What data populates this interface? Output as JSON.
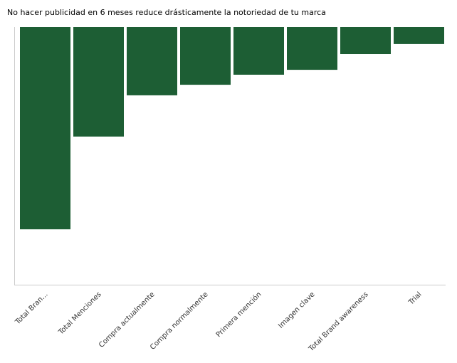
{
  "chart_data": {
    "type": "bar",
    "title": "No hacer publicidad en 6 meses reduce drásticamente la notoriedad de tu marca",
    "categories": [
      "Total Bran...",
      "Total Menciones",
      "Compra actualmente",
      "Compra normalmente",
      "Primera mención",
      "Imagen clave",
      "Total Brand awareness",
      "Trial"
    ],
    "values": [
      -78.5,
      -42.5,
      -26.5,
      -22.4,
      -18.5,
      -16.6,
      -10.5,
      -6.6
    ],
    "color": "#1d5e34",
    "ylim": [
      -100,
      0
    ]
  }
}
